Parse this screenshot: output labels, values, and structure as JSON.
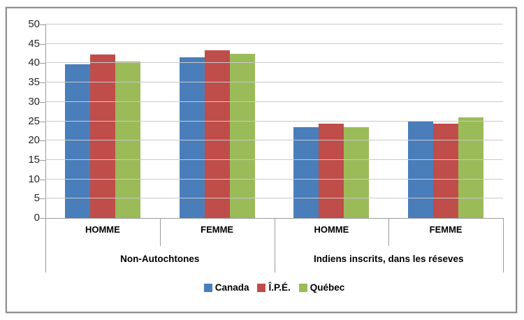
{
  "chart_data": {
    "type": "bar",
    "title": "",
    "y_axis": {
      "min": 0,
      "max": 50,
      "step": 5
    },
    "grid": true,
    "legend_position": "bottom",
    "categories": [
      "HOMME",
      "FEMME",
      "HOMME",
      "FEMME"
    ],
    "groups": [
      {
        "label": "Non-Autochtones",
        "span": [
          0,
          1
        ]
      },
      {
        "label": "Indiens inscrits, dans les réseves",
        "span": [
          2,
          3
        ]
      }
    ],
    "series": [
      {
        "name": "Canada",
        "color": "#4a7ebb",
        "values": [
          39.7,
          41.5,
          23.5,
          25.1
        ]
      },
      {
        "name": "Î.P.É.",
        "color": "#bf4d4a",
        "values": [
          42.3,
          43.4,
          24.4,
          24.4
        ]
      },
      {
        "name": "Québec",
        "color": "#9bbb59",
        "values": [
          40.5,
          42.4,
          23.5,
          26.0
        ]
      }
    ]
  },
  "colors": {
    "gridline": "#c9c9c9",
    "axis": "#9a9a9a",
    "frame_border": "#8f8f8f",
    "text": "#262626"
  }
}
